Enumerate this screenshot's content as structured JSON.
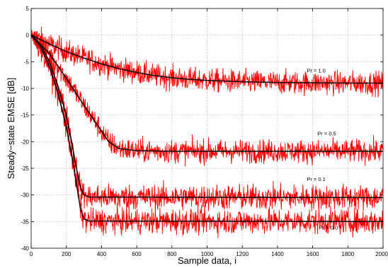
{
  "chart_data": {
    "type": "line",
    "title": "",
    "xlabel": "Sample data, i",
    "ylabel": "Steady−state EMSE [dB]",
    "xlim": [
      0,
      2000
    ],
    "ylim": [
      -40,
      5
    ],
    "xticks": [
      0,
      200,
      400,
      600,
      800,
      1000,
      1200,
      1400,
      1600,
      1800,
      2000
    ],
    "yticks": [
      5,
      0,
      -5,
      -10,
      -15,
      -20,
      -25,
      -30,
      -35,
      -40
    ],
    "grid": true,
    "legend": "none",
    "colors": {
      "simulated": "#ff0000",
      "theory": "#000000"
    },
    "series": [
      {
        "label": "Pr = 1.0",
        "theory": [
          [
            0,
            0
          ],
          [
            100,
            -1.6
          ],
          [
            200,
            -3.1
          ],
          [
            300,
            -4.3
          ],
          [
            400,
            -5.4
          ],
          [
            500,
            -6.3
          ],
          [
            600,
            -7.0
          ],
          [
            700,
            -7.6
          ],
          [
            800,
            -8.0
          ],
          [
            900,
            -8.3
          ],
          [
            1000,
            -8.5
          ],
          [
            1200,
            -8.75
          ],
          [
            1400,
            -8.9
          ],
          [
            1600,
            -8.95
          ],
          [
            1800,
            -9.0
          ],
          [
            2000,
            -9.0
          ]
        ],
        "noise": 1.1
      },
      {
        "label": "Pr = 0.5",
        "theory": [
          [
            0,
            0
          ],
          [
            100,
            -3.3
          ],
          [
            200,
            -8.1
          ],
          [
            300,
            -13.2
          ],
          [
            400,
            -18.0
          ],
          [
            440,
            -20.0
          ],
          [
            500,
            -21.3
          ],
          [
            600,
            -21.7
          ],
          [
            800,
            -21.8
          ],
          [
            2000,
            -21.8
          ]
        ],
        "noise": 1.1
      },
      {
        "label": "Pr = 0.1",
        "theory": [
          [
            0,
            0
          ],
          [
            50,
            -1.6
          ],
          [
            100,
            -4.7
          ],
          [
            150,
            -9.3
          ],
          [
            200,
            -15.0
          ],
          [
            230,
            -20.0
          ],
          [
            260,
            -25.4
          ],
          [
            280,
            -28.6
          ],
          [
            300,
            -30.0
          ],
          [
            330,
            -30.4
          ],
          [
            2000,
            -30.5
          ]
        ],
        "noise": 1.2
      },
      {
        "label": "Pr = 0.0",
        "theory": [
          [
            0,
            0
          ],
          [
            50,
            -2.0
          ],
          [
            100,
            -5.6
          ],
          [
            150,
            -10.6
          ],
          [
            200,
            -17.2
          ],
          [
            230,
            -22.4
          ],
          [
            260,
            -28.4
          ],
          [
            280,
            -32.6
          ],
          [
            300,
            -34.5
          ],
          [
            330,
            -34.9
          ],
          [
            2000,
            -35.0
          ]
        ],
        "noise": 1.2
      }
    ],
    "annotations": [
      {
        "text": "Pr = 1.0",
        "x": 1620,
        "y": -7.0
      },
      {
        "text": "Pr = 0.5",
        "x": 1680,
        "y": -18.8
      },
      {
        "text": "Pr = 0.1",
        "x": 1620,
        "y": -27.4
      },
      {
        "text": "Pr = 0.0",
        "x": 1690,
        "y": -36.5
      }
    ]
  }
}
